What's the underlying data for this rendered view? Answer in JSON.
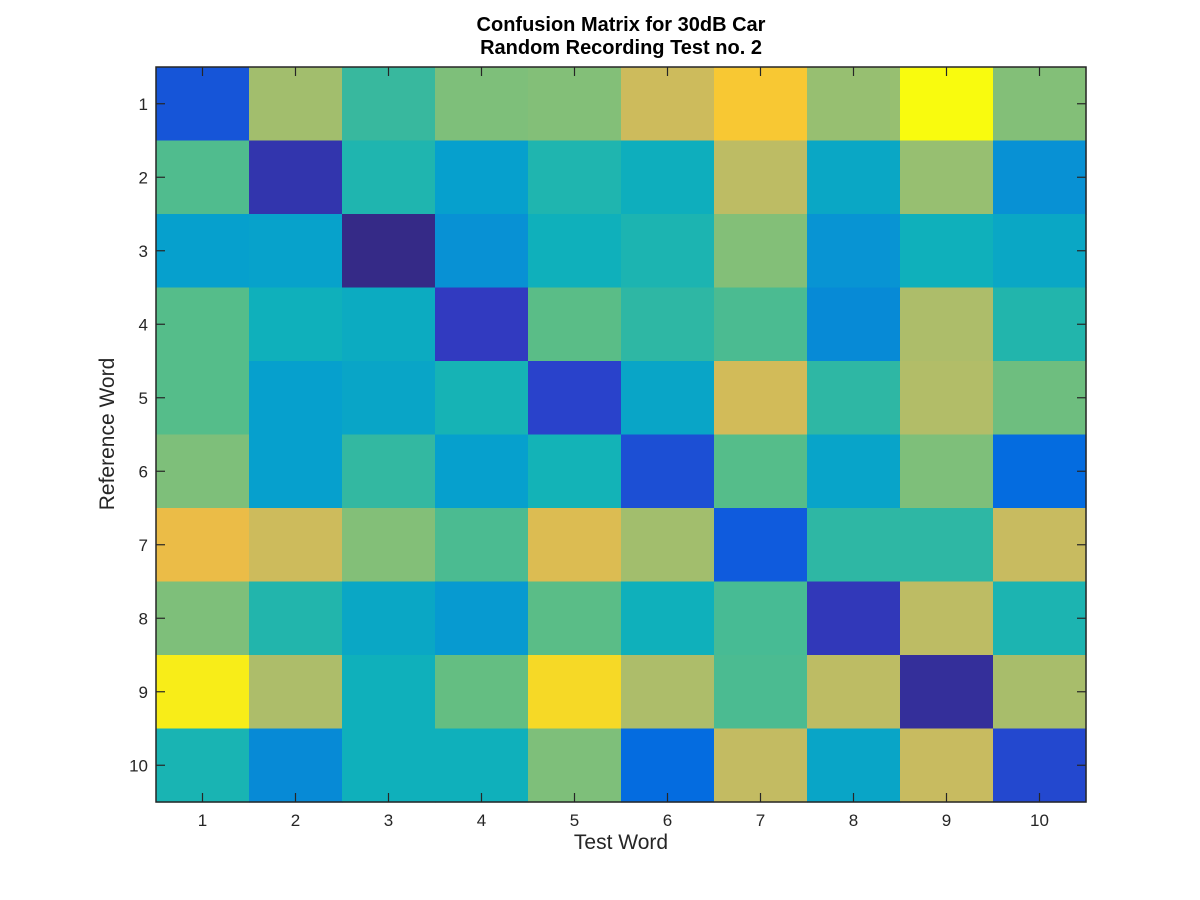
{
  "chart_data": {
    "type": "heatmap",
    "title": [
      "Confusion Matrix for 30dB Car",
      "Random Recording Test no. 2"
    ],
    "xlabel": "Test Word",
    "ylabel": "Reference Word",
    "x_categories": [
      "1",
      "2",
      "3",
      "4",
      "5",
      "6",
      "7",
      "8",
      "9",
      "10"
    ],
    "y_categories": [
      "1",
      "2",
      "3",
      "4",
      "5",
      "6",
      "7",
      "8",
      "9",
      "10"
    ],
    "colormap": "parula",
    "color_range": [
      0,
      1
    ],
    "values": [
      [
        0.14,
        0.73,
        0.52,
        0.66,
        0.67,
        0.81,
        0.92,
        0.71,
        1.0,
        0.67
      ],
      [
        0.57,
        0.06,
        0.45,
        0.3,
        0.45,
        0.38,
        0.78,
        0.34,
        0.71,
        0.25
      ],
      [
        0.3,
        0.31,
        0.0,
        0.25,
        0.39,
        0.44,
        0.67,
        0.26,
        0.39,
        0.34
      ],
      [
        0.58,
        0.39,
        0.36,
        0.09,
        0.59,
        0.5,
        0.56,
        0.24,
        0.75,
        0.46
      ],
      [
        0.58,
        0.3,
        0.33,
        0.42,
        0.11,
        0.33,
        0.82,
        0.5,
        0.76,
        0.63
      ],
      [
        0.66,
        0.3,
        0.51,
        0.3,
        0.41,
        0.13,
        0.58,
        0.32,
        0.66,
        0.2
      ],
      [
        0.87,
        0.81,
        0.67,
        0.56,
        0.84,
        0.73,
        0.15,
        0.5,
        0.5,
        0.8
      ],
      [
        0.66,
        0.46,
        0.34,
        0.28,
        0.59,
        0.39,
        0.55,
        0.08,
        0.78,
        0.44
      ],
      [
        0.98,
        0.75,
        0.39,
        0.61,
        0.95,
        0.75,
        0.56,
        0.78,
        0.03,
        0.74
      ],
      [
        0.43,
        0.24,
        0.39,
        0.39,
        0.66,
        0.2,
        0.79,
        0.33,
        0.8,
        0.12
      ]
    ]
  }
}
